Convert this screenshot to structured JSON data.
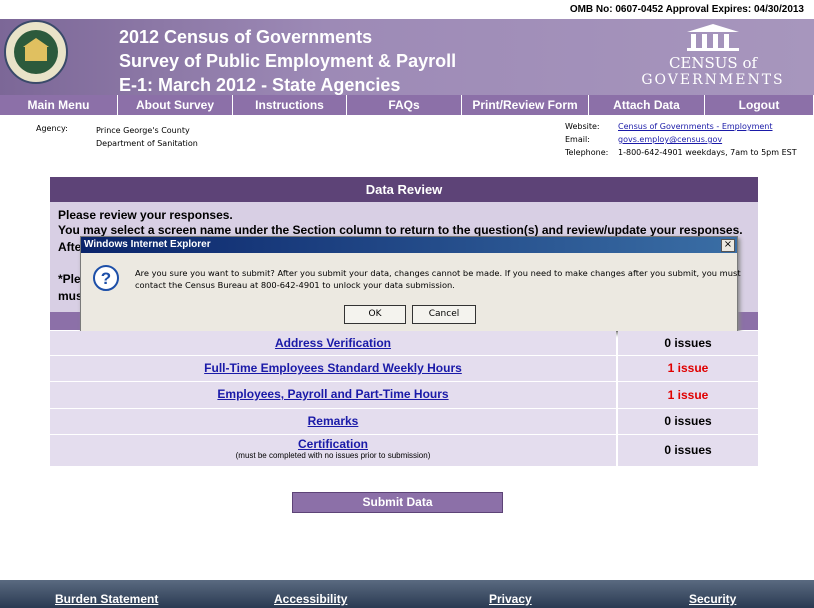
{
  "omb": "OMB No:  0607-0452  Approval Expires: 04/30/2013",
  "header": {
    "title_lines": [
      "2012 Census of Governments",
      "Survey of Public Employment & Payroll",
      "E-1: March 2012 -  State Agencies"
    ],
    "logo": [
      "CENSUS of",
      "GOVERNMENTS"
    ]
  },
  "nav": [
    "Main Menu",
    "About Survey",
    "Instructions",
    "FAQs",
    "Print/Review Form",
    "Attach Data",
    "Logout"
  ],
  "agency": {
    "label": "Agency:",
    "lines": [
      "Prince George's County",
      "Department of Sanitation"
    ]
  },
  "contact": {
    "website_label": "Website:",
    "website": "Census of Governments - Employment",
    "email_label": "Email:",
    "email": "govs.employ@census.gov",
    "phone_label": "Telephone:",
    "phone": "1-800-642-4901  weekdays, 7am to 5pm EST"
  },
  "review": {
    "title": "Data Review",
    "lines": [
      "Please review your responses.",
      "You may select a screen name under the Section column to return to the question(s) and review/update your responses.",
      "Afte",
      "*Ple",
      "mus"
    ],
    "rows": [
      {
        "section": "Address Verification",
        "status": "0 issues"
      },
      {
        "section": "Full-Time Employees Standard Weekly Hours",
        "status": "1 issue"
      },
      {
        "section": "Employees, Payroll and Part-Time Hours",
        "status": "1 issue"
      },
      {
        "section": "Remarks",
        "status": "0 issues"
      },
      {
        "section": "Certification",
        "note": "(must be completed  with no issues prior to submission)",
        "status": "0 issues"
      }
    ]
  },
  "submit": "Submit Data",
  "dialog": {
    "title": "Windows Internet Explorer",
    "message_lines": [
      "Are you sure you want to submit? After you submit your data, changes cannot be made. If you need to make changes after you submit, you must",
      "contact the Census Bureau at 800-642-4901 to unlock your data submission."
    ],
    "ok": "OK",
    "cancel": "Cancel"
  },
  "footer": [
    "Burden Statement",
    "Accessibility",
    "Privacy",
    "Security"
  ]
}
